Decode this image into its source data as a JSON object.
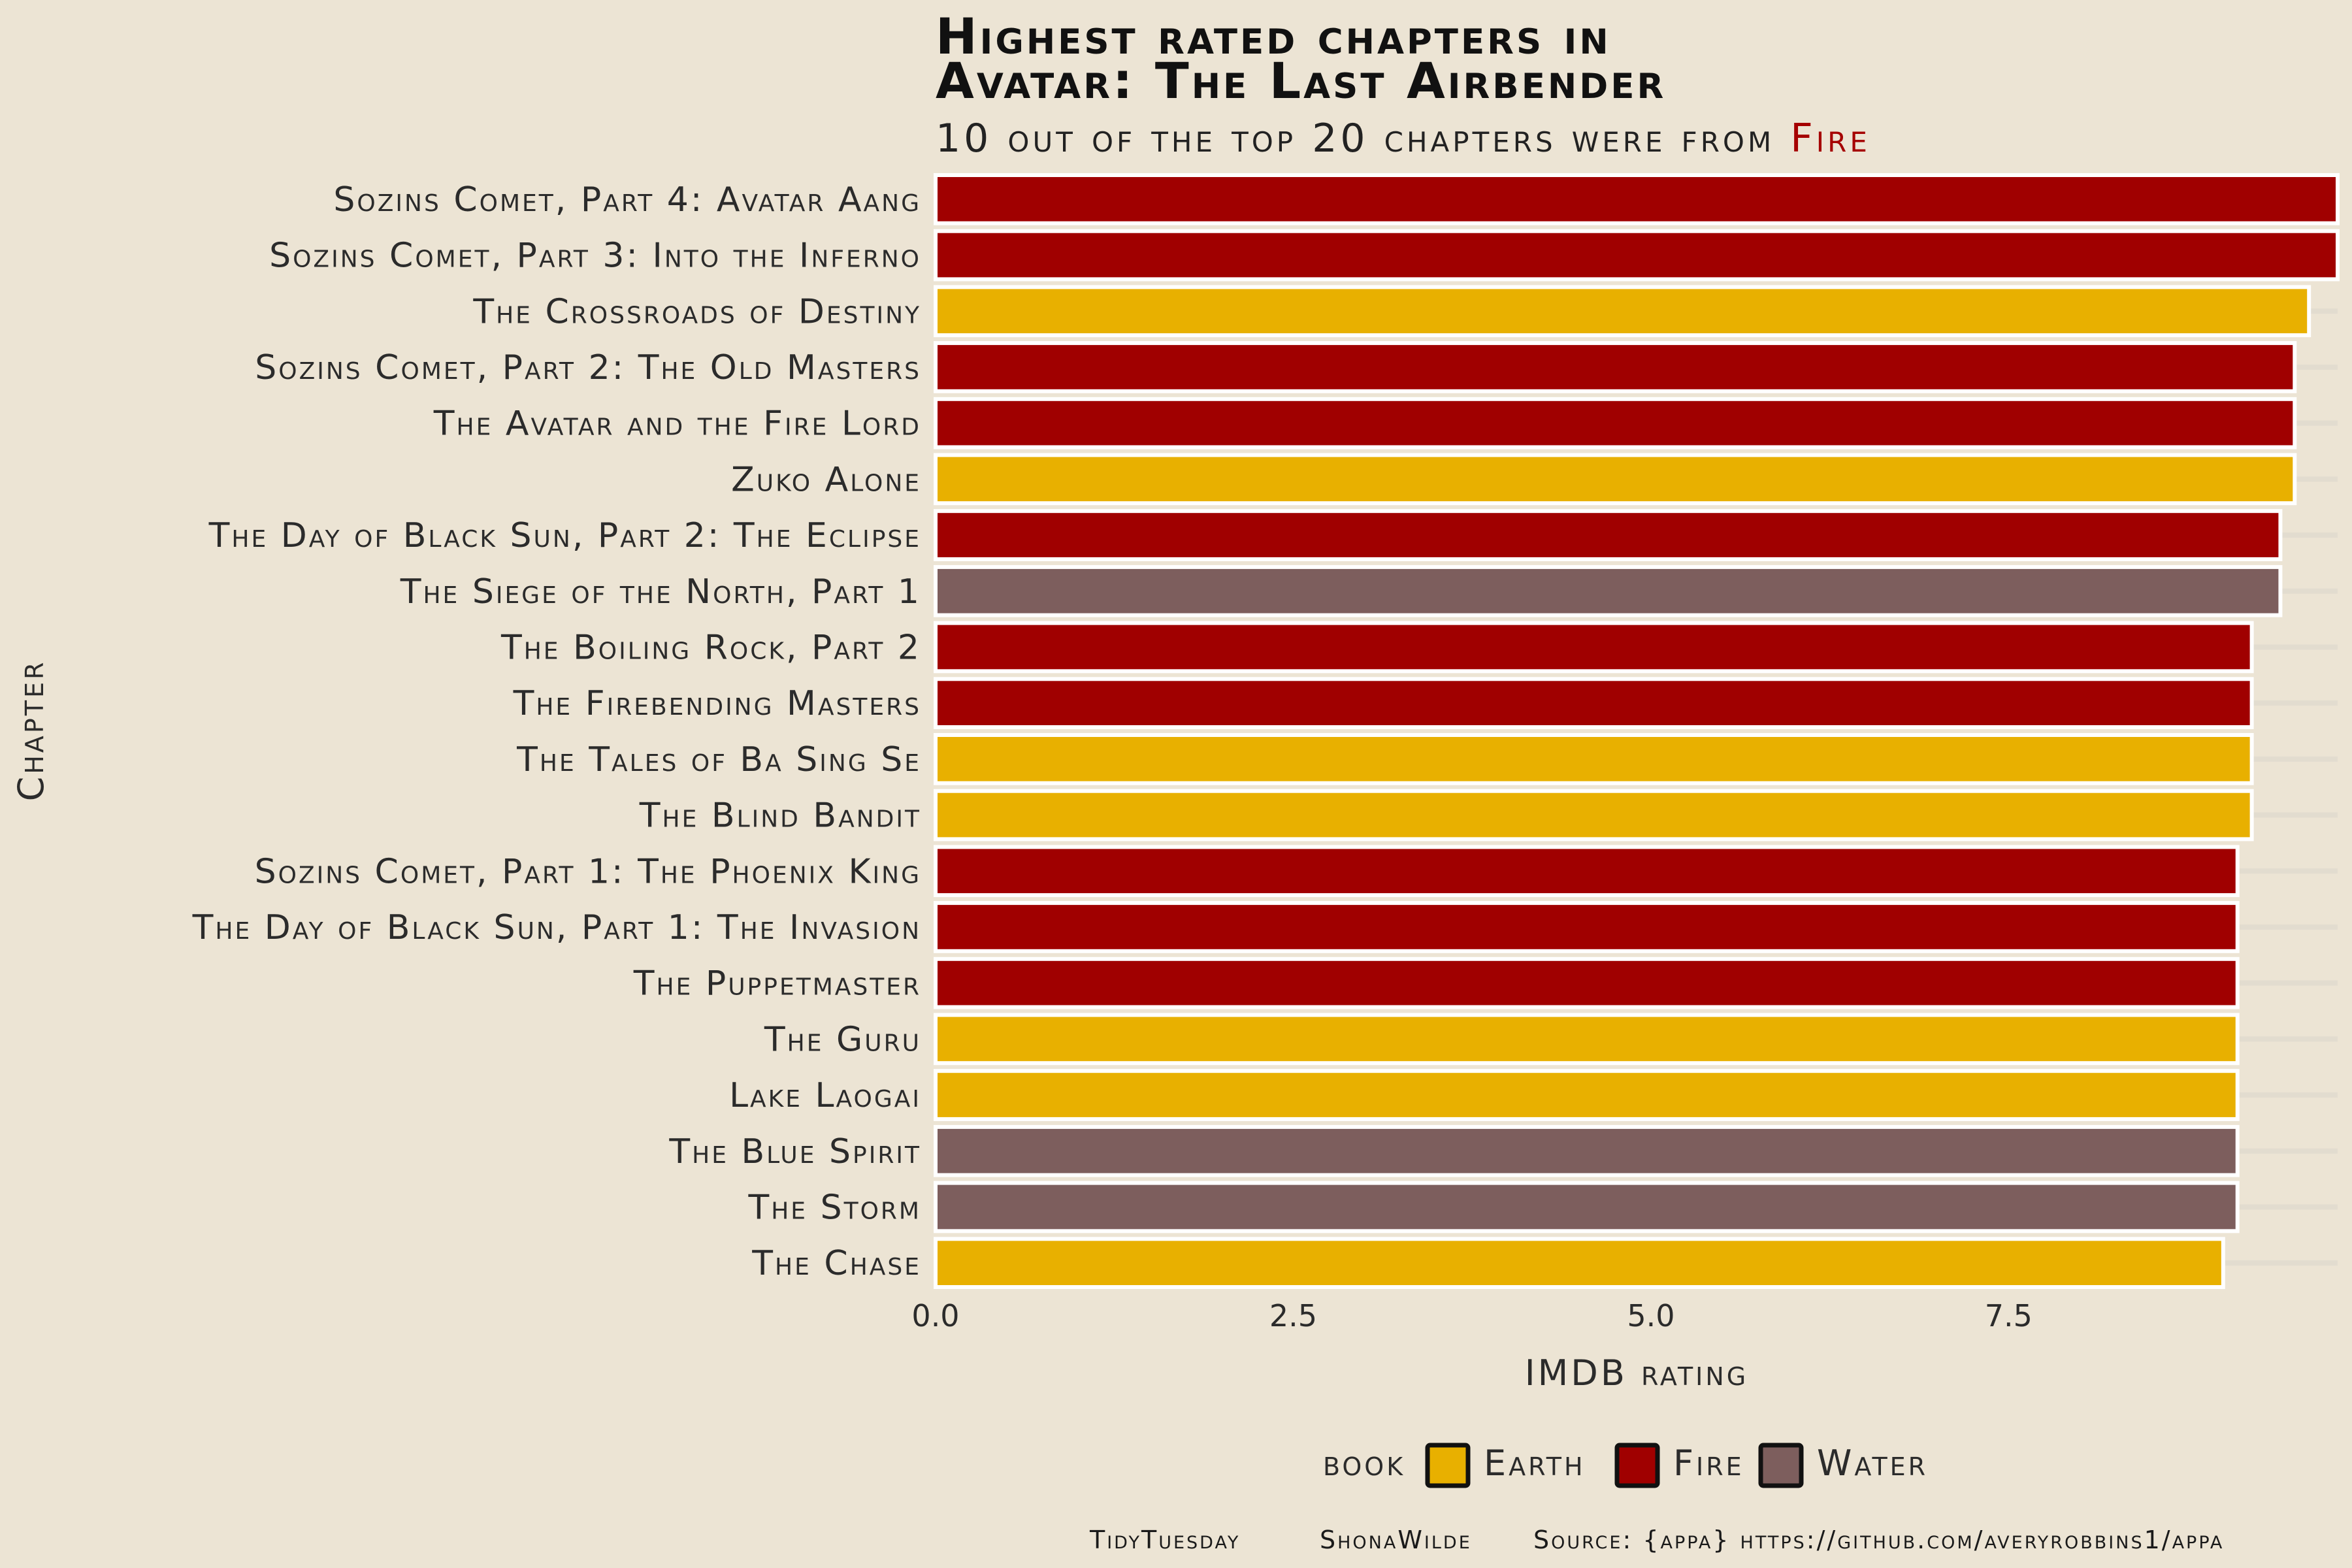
{
  "chart_data": {
    "type": "bar",
    "orientation": "horizontal",
    "title_line1": "Highest rated chapters in",
    "title_line2": "Avatar: The Last Airbender",
    "subtitle_prefix": "10 out of the top 20 chapters were from ",
    "subtitle_highlight": "Fire",
    "subtitle_highlight_color": "#a50000",
    "xlabel": "IMDB rating",
    "ylabel": "Chapter",
    "xlim": [
      0,
      9.8
    ],
    "xticks": [
      0,
      2.5,
      5,
      7.5
    ],
    "xtick_labels": [
      "0.0",
      "2.5",
      "5.0",
      "7.5"
    ],
    "grid": true,
    "legend": {
      "position": "bottom",
      "title": "book",
      "items": [
        {
          "name": "Earth",
          "color": "#e8b000"
        },
        {
          "name": "Fire",
          "color": "#a00000"
        },
        {
          "name": "Water",
          "color": "#7d5e5d"
        }
      ]
    },
    "categories": [
      "Sozins Comet, Part 4: Avatar Aang",
      "Sozins Comet, Part 3: Into the Inferno",
      "The Crossroads of Destiny",
      "Sozins Comet, Part 2: The Old Masters",
      "The Avatar and the Fire Lord",
      "Zuko Alone",
      "The Day of Black Sun, Part 2: The Eclipse",
      "The Siege of the North, Part 1",
      "The Boiling Rock, Part 2",
      "The Firebending Masters",
      "The Tales of Ba Sing Se",
      "The Blind Bandit",
      "Sozins Comet, Part 1: The Phoenix King",
      "The Day of Black Sun, Part 1: The Invasion",
      "The Puppetmaster",
      "The Guru",
      "Lake Laogai",
      "The Blue Spirit",
      "The Storm",
      "The Chase"
    ],
    "values": [
      9.8,
      9.8,
      9.6,
      9.5,
      9.5,
      9.5,
      9.4,
      9.4,
      9.2,
      9.2,
      9.2,
      9.2,
      9.1,
      9.1,
      9.1,
      9.1,
      9.1,
      9.1,
      9.1,
      9.0
    ],
    "book": [
      "Fire",
      "Fire",
      "Earth",
      "Fire",
      "Fire",
      "Earth",
      "Fire",
      "Water",
      "Fire",
      "Fire",
      "Earth",
      "Earth",
      "Fire",
      "Fire",
      "Fire",
      "Earth",
      "Earth",
      "Water",
      "Water",
      "Earth"
    ],
    "caption": [
      "TidyTuesday",
      "ShonaWilde",
      "Source: {appa} https://github.com/averyrobbins1/appa"
    ]
  }
}
